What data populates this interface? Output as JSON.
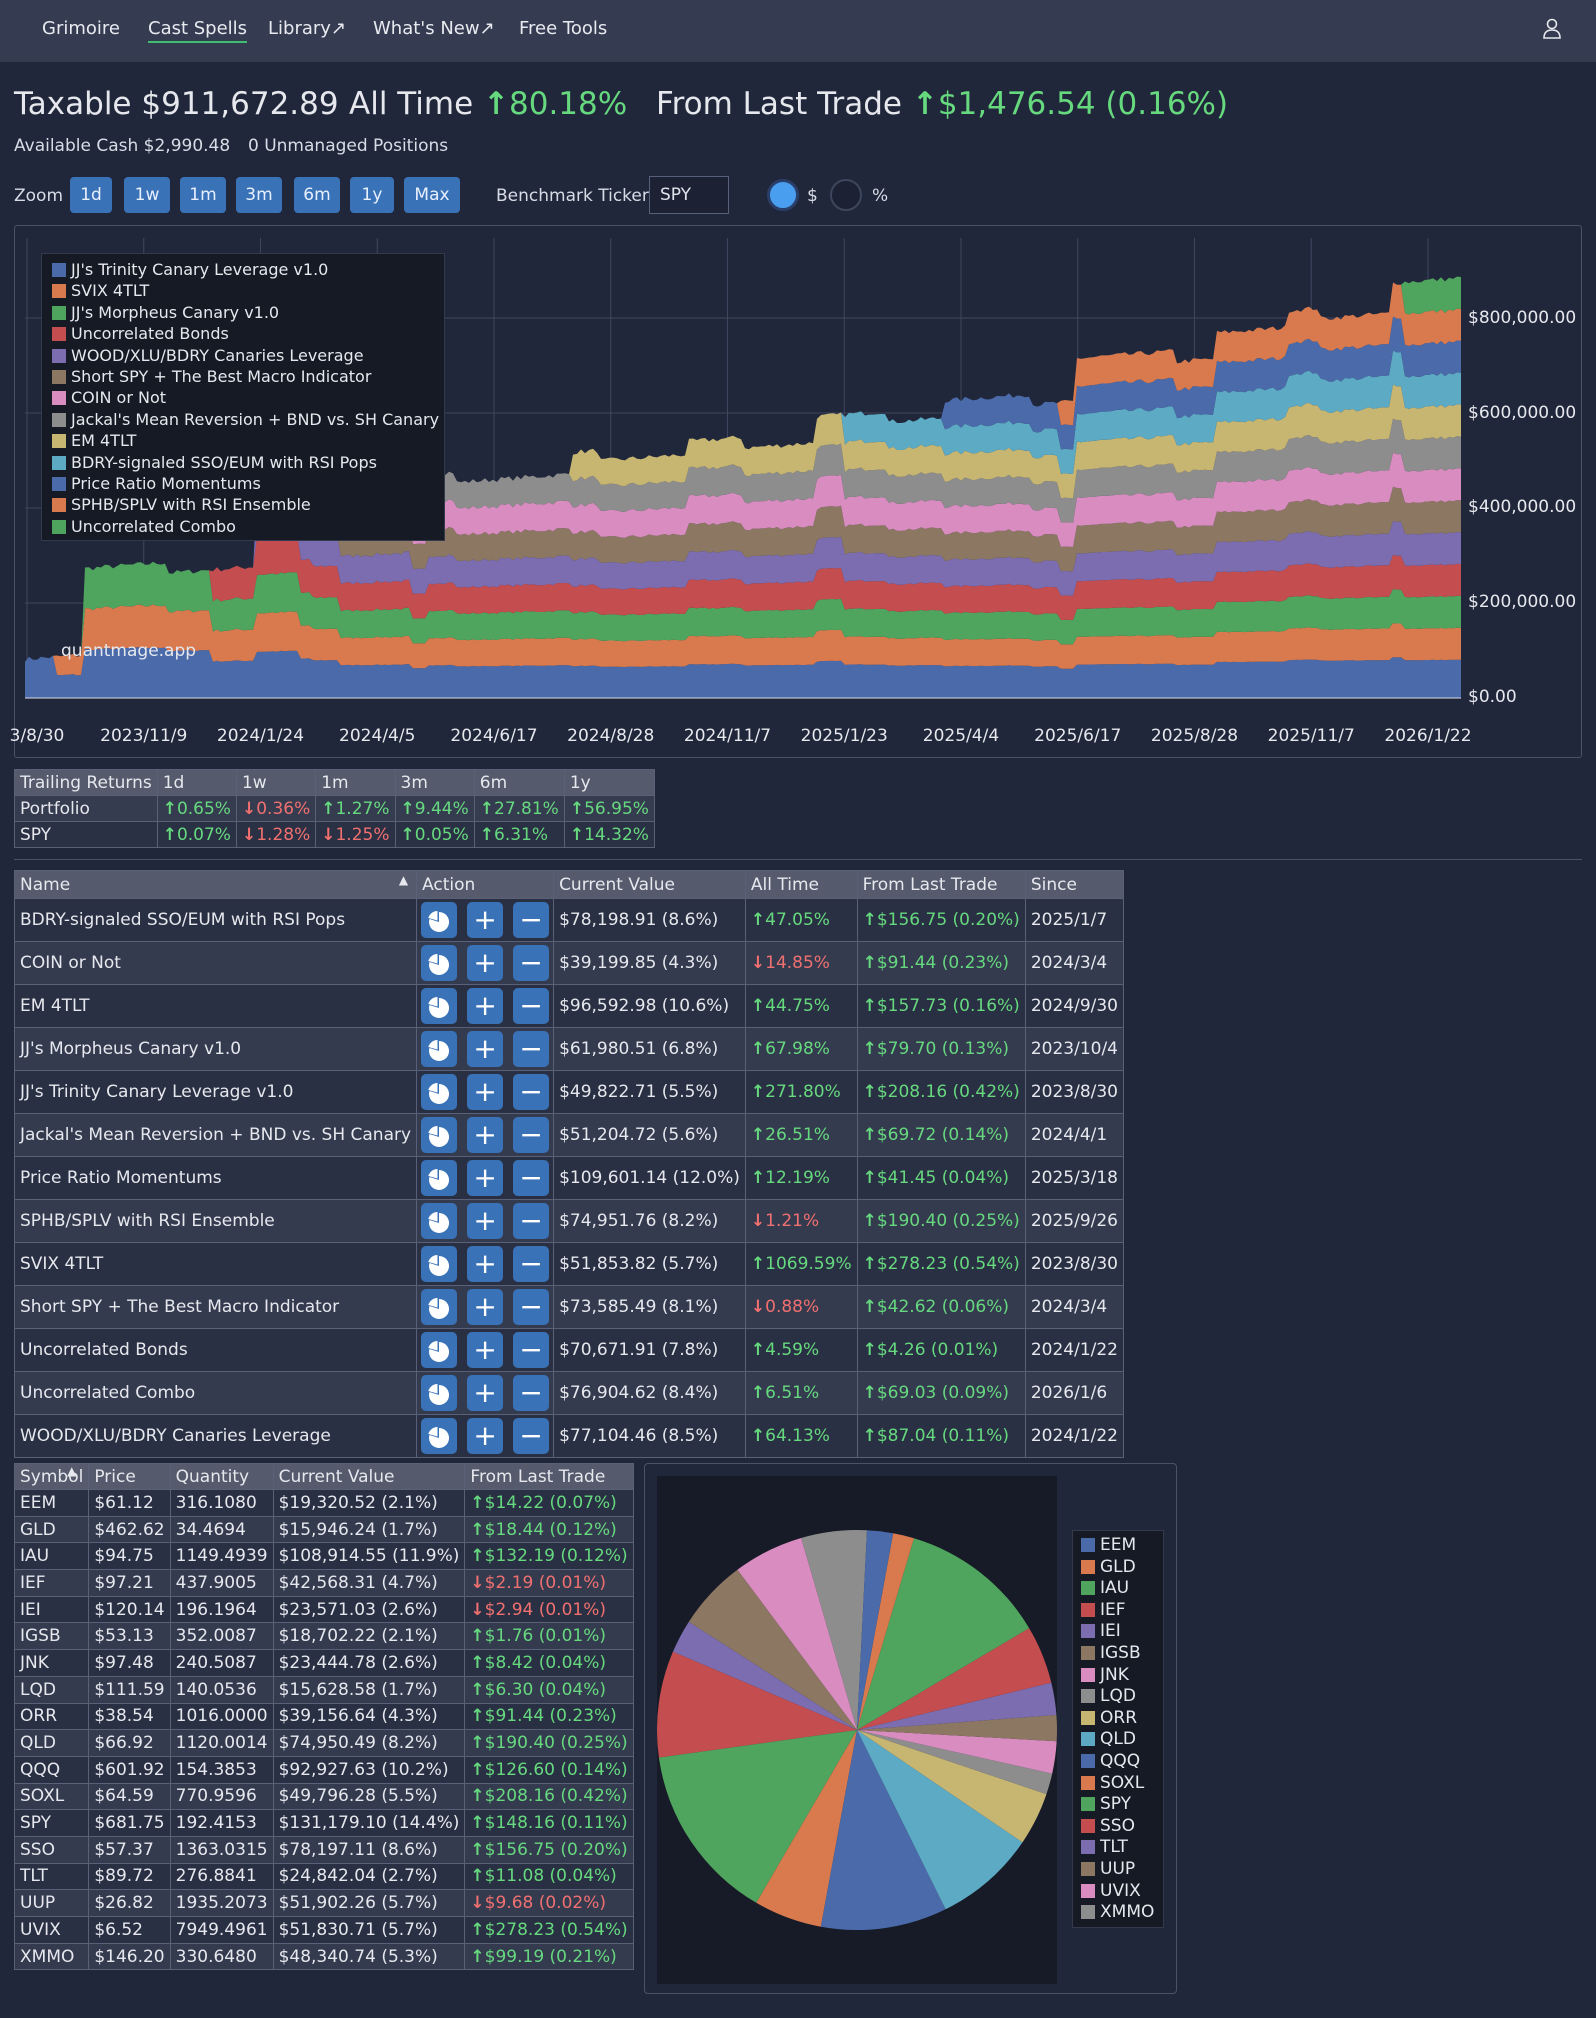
{
  "nav": {
    "items": [
      "Grimoire",
      "Cast Spells",
      "Library↗",
      "What's New↗",
      "Free Tools"
    ],
    "active": "Cast Spells"
  },
  "header": {
    "taxable_label": "Taxable",
    "taxable_value": "$911,672.89",
    "all_time_label": "All Time",
    "all_time_value": "80.18%",
    "last_trade_label": "From Last Trade",
    "last_trade_value": "$1,476.54 (0.16%)",
    "available_cash": "Available Cash $2,990.48",
    "unmanaged": "0 Unmanaged Positions"
  },
  "controls": {
    "zoom_label": "Zoom",
    "zoom_buttons": [
      "1d",
      "1w",
      "1m",
      "3m",
      "6m",
      "1y",
      "Max"
    ],
    "benchmark_label": "Benchmark Ticker",
    "benchmark_value": "SPY",
    "radio_dollar": "$",
    "radio_percent": "%",
    "selected": "$"
  },
  "chart_data": {
    "type": "area",
    "stacked": true,
    "watermark": "quantmage.app",
    "x_ticks": [
      "3/8/30",
      "2023/11/9",
      "2024/1/24",
      "2024/4/5",
      "2024/6/17",
      "2024/8/28",
      "2024/11/7",
      "2025/1/23",
      "2025/4/4",
      "2025/6/17",
      "2025/8/28",
      "2025/11/7",
      "2026/1/22"
    ],
    "y_ticks": [
      "$800,000.00",
      "$600,000.00",
      "$400,000.00",
      "$200,000.00",
      "$0.00"
    ],
    "ylim": [
      0,
      930000
    ],
    "legend_position": "top-left",
    "series": [
      {
        "name": "JJ's Trinity Canary Leverage v1.0",
        "color": "#4a6aaa"
      },
      {
        "name": "SVIX 4TLT",
        "color": "#d87a4e"
      },
      {
        "name": "JJ's Morpheus Canary v1.0",
        "color": "#4fa55e"
      },
      {
        "name": "Uncorrelated Bonds",
        "color": "#c44d4f"
      },
      {
        "name": "WOOD/XLU/BDRY Canaries Leverage",
        "color": "#7b6db0"
      },
      {
        "name": "Short SPY + The Best Macro Indicator",
        "color": "#8c7763"
      },
      {
        "name": "COIN or Not",
        "color": "#d98cc0"
      },
      {
        "name": "Jackal's Mean Reversion + BND vs. SH Canary",
        "color": "#8d8d8d"
      },
      {
        "name": "EM 4TLT",
        "color": "#c7b572"
      },
      {
        "name": "BDRY-signaled SSO/EUM with RSI Pops",
        "color": "#5daac4"
      },
      {
        "name": "Price Ratio Momentums",
        "color": "#4a6aaa"
      },
      {
        "name": "SPHB/SPLV with RSI Ensemble",
        "color": "#d87a4e"
      },
      {
        "name": "Uncorrelated Combo",
        "color": "#4fa55e"
      }
    ]
  },
  "trailing": {
    "headers": [
      "Trailing Returns",
      "1d",
      "1w",
      "1m",
      "3m",
      "6m",
      "1y"
    ],
    "rows": [
      {
        "name": "Portfolio",
        "cells": [
          {
            "v": "0.65%",
            "up": true
          },
          {
            "v": "0.36%",
            "up": false
          },
          {
            "v": "1.27%",
            "up": true
          },
          {
            "v": "9.44%",
            "up": true
          },
          {
            "v": "27.81%",
            "up": true
          },
          {
            "v": "56.95%",
            "up": true
          }
        ]
      },
      {
        "name": "SPY",
        "cells": [
          {
            "v": "0.07%",
            "up": true
          },
          {
            "v": "1.28%",
            "up": false
          },
          {
            "v": "1.25%",
            "up": false
          },
          {
            "v": "0.05%",
            "up": true
          },
          {
            "v": "6.31%",
            "up": true
          },
          {
            "v": "14.32%",
            "up": true
          }
        ]
      }
    ]
  },
  "strategies": {
    "headers": [
      "Name",
      "Action",
      "Current Value",
      "All Time",
      "From Last Trade",
      "Since"
    ],
    "sort_indicator": "▲",
    "rows": [
      {
        "name": "BDRY-signaled SSO/EUM with RSI Pops",
        "value": "$78,198.91 (8.6%)",
        "all_time": "47.05%",
        "at_up": true,
        "last": "$156.75 (0.20%)",
        "lt_up": true,
        "since": "2025/1/7"
      },
      {
        "name": "COIN or Not",
        "value": "$39,199.85 (4.3%)",
        "all_time": "14.85%",
        "at_up": false,
        "last": "$91.44 (0.23%)",
        "lt_up": true,
        "since": "2024/3/4"
      },
      {
        "name": "EM 4TLT",
        "value": "$96,592.98 (10.6%)",
        "all_time": "44.75%",
        "at_up": true,
        "last": "$157.73 (0.16%)",
        "lt_up": true,
        "since": "2024/9/30"
      },
      {
        "name": "JJ's Morpheus Canary v1.0",
        "value": "$61,980.51 (6.8%)",
        "all_time": "67.98%",
        "at_up": true,
        "last": "$79.70 (0.13%)",
        "lt_up": true,
        "since": "2023/10/4"
      },
      {
        "name": "JJ's Trinity Canary Leverage v1.0",
        "value": "$49,822.71 (5.5%)",
        "all_time": "271.80%",
        "at_up": true,
        "last": "$208.16 (0.42%)",
        "lt_up": true,
        "since": "2023/8/30"
      },
      {
        "name": "Jackal's Mean Reversion + BND vs. SH Canary",
        "value": "$51,204.72 (5.6%)",
        "all_time": "26.51%",
        "at_up": true,
        "last": "$69.72 (0.14%)",
        "lt_up": true,
        "since": "2024/4/1"
      },
      {
        "name": "Price Ratio Momentums",
        "value": "$109,601.14 (12.0%)",
        "all_time": "12.19%",
        "at_up": true,
        "last": "$41.45 (0.04%)",
        "lt_up": true,
        "since": "2025/3/18"
      },
      {
        "name": "SPHB/SPLV with RSI Ensemble",
        "value": "$74,951.76 (8.2%)",
        "all_time": "1.21%",
        "at_up": false,
        "last": "$190.40 (0.25%)",
        "lt_up": true,
        "since": "2025/9/26"
      },
      {
        "name": "SVIX 4TLT",
        "value": "$51,853.82 (5.7%)",
        "all_time": "1069.59%",
        "at_up": true,
        "last": "$278.23 (0.54%)",
        "lt_up": true,
        "since": "2023/8/30"
      },
      {
        "name": "Short SPY + The Best Macro Indicator",
        "value": "$73,585.49 (8.1%)",
        "all_time": "0.88%",
        "at_up": false,
        "last": "$42.62 (0.06%)",
        "lt_up": true,
        "since": "2024/3/4"
      },
      {
        "name": "Uncorrelated Bonds",
        "value": "$70,671.91 (7.8%)",
        "all_time": "4.59%",
        "at_up": true,
        "last": "$4.26 (0.01%)",
        "lt_up": true,
        "since": "2024/1/22"
      },
      {
        "name": "Uncorrelated Combo",
        "value": "$76,904.62 (8.4%)",
        "all_time": "6.51%",
        "at_up": true,
        "last": "$69.03 (0.09%)",
        "lt_up": true,
        "since": "2026/1/6"
      },
      {
        "name": "WOOD/XLU/BDRY Canaries Leverage",
        "value": "$77,104.46 (8.5%)",
        "all_time": "64.13%",
        "at_up": true,
        "last": "$87.04 (0.11%)",
        "lt_up": true,
        "since": "2024/1/22"
      }
    ]
  },
  "symbols": {
    "headers": [
      "Symbol",
      "Price",
      "Quantity",
      "Current Value",
      "From Last Trade"
    ],
    "sort_indicator": "▲",
    "rows": [
      {
        "sym": "EEM",
        "price": "$61.12",
        "qty": "316.1080",
        "value": "$19,320.52 (2.1%)",
        "last": "$14.22 (0.07%)",
        "up": true
      },
      {
        "sym": "GLD",
        "price": "$462.62",
        "qty": "34.4694",
        "value": "$15,946.24 (1.7%)",
        "last": "$18.44 (0.12%)",
        "up": true
      },
      {
        "sym": "IAU",
        "price": "$94.75",
        "qty": "1149.4939",
        "value": "$108,914.55 (11.9%)",
        "last": "$132.19 (0.12%)",
        "up": true
      },
      {
        "sym": "IEF",
        "price": "$97.21",
        "qty": "437.9005",
        "value": "$42,568.31 (4.7%)",
        "last": "$2.19 (0.01%)",
        "up": false
      },
      {
        "sym": "IEI",
        "price": "$120.14",
        "qty": "196.1964",
        "value": "$23,571.03 (2.6%)",
        "last": "$2.94 (0.01%)",
        "up": false
      },
      {
        "sym": "IGSB",
        "price": "$53.13",
        "qty": "352.0087",
        "value": "$18,702.22 (2.1%)",
        "last": "$1.76 (0.01%)",
        "up": true
      },
      {
        "sym": "JNK",
        "price": "$97.48",
        "qty": "240.5087",
        "value": "$23,444.78 (2.6%)",
        "last": "$8.42 (0.04%)",
        "up": true
      },
      {
        "sym": "LQD",
        "price": "$111.59",
        "qty": "140.0536",
        "value": "$15,628.58 (1.7%)",
        "last": "$6.30 (0.04%)",
        "up": true
      },
      {
        "sym": "ORR",
        "price": "$38.54",
        "qty": "1016.0000",
        "value": "$39,156.64 (4.3%)",
        "last": "$91.44 (0.23%)",
        "up": true
      },
      {
        "sym": "QLD",
        "price": "$66.92",
        "qty": "1120.0014",
        "value": "$74,950.49 (8.2%)",
        "last": "$190.40 (0.25%)",
        "up": true
      },
      {
        "sym": "QQQ",
        "price": "$601.92",
        "qty": "154.3853",
        "value": "$92,927.63 (10.2%)",
        "last": "$126.60 (0.14%)",
        "up": true
      },
      {
        "sym": "SOXL",
        "price": "$64.59",
        "qty": "770.9596",
        "value": "$49,796.28 (5.5%)",
        "last": "$208.16 (0.42%)",
        "up": true
      },
      {
        "sym": "SPY",
        "price": "$681.75",
        "qty": "192.4153",
        "value": "$131,179.10 (14.4%)",
        "last": "$148.16 (0.11%)",
        "up": true
      },
      {
        "sym": "SSO",
        "price": "$57.37",
        "qty": "1363.0315",
        "value": "$78,197.11 (8.6%)",
        "last": "$156.75 (0.20%)",
        "up": true
      },
      {
        "sym": "TLT",
        "price": "$89.72",
        "qty": "276.8841",
        "value": "$24,842.04 (2.7%)",
        "last": "$11.08 (0.04%)",
        "up": true
      },
      {
        "sym": "UUP",
        "price": "$26.82",
        "qty": "1935.2073",
        "value": "$51,902.26 (5.7%)",
        "last": "$9.68 (0.02%)",
        "up": false
      },
      {
        "sym": "UVIX",
        "price": "$6.52",
        "qty": "7949.4961",
        "value": "$51,830.71 (5.7%)",
        "last": "$278.23 (0.54%)",
        "up": true
      },
      {
        "sym": "XMMO",
        "price": "$146.20",
        "qty": "330.6480",
        "value": "$48,340.74 (5.3%)",
        "last": "$99.19 (0.21%)",
        "up": true
      }
    ]
  },
  "pie": {
    "type": "pie",
    "slices": [
      {
        "label": "EEM",
        "value": 2.1,
        "color": "#4a6aaa"
      },
      {
        "label": "GLD",
        "value": 1.7,
        "color": "#d87a4e"
      },
      {
        "label": "IAU",
        "value": 11.9,
        "color": "#4fa55e"
      },
      {
        "label": "IEF",
        "value": 4.7,
        "color": "#c44d4f"
      },
      {
        "label": "IEI",
        "value": 2.6,
        "color": "#7b6db0"
      },
      {
        "label": "IGSB",
        "value": 2.1,
        "color": "#8c7763"
      },
      {
        "label": "JNK",
        "value": 2.6,
        "color": "#d98cc0"
      },
      {
        "label": "LQD",
        "value": 1.7,
        "color": "#8d8d8d"
      },
      {
        "label": "ORR",
        "value": 4.3,
        "color": "#c7b572"
      },
      {
        "label": "QLD",
        "value": 8.2,
        "color": "#5daac4"
      },
      {
        "label": "QQQ",
        "value": 10.2,
        "color": "#4a6aaa"
      },
      {
        "label": "SOXL",
        "value": 5.5,
        "color": "#d87a4e"
      },
      {
        "label": "SPY",
        "value": 14.4,
        "color": "#4fa55e"
      },
      {
        "label": "SSO",
        "value": 8.6,
        "color": "#c44d4f"
      },
      {
        "label": "TLT",
        "value": 2.7,
        "color": "#7b6db0"
      },
      {
        "label": "UUP",
        "value": 5.7,
        "color": "#8c7763"
      },
      {
        "label": "UVIX",
        "value": 5.7,
        "color": "#d98cc0"
      },
      {
        "label": "XMMO",
        "value": 5.3,
        "color": "#8d8d8d"
      }
    ]
  }
}
